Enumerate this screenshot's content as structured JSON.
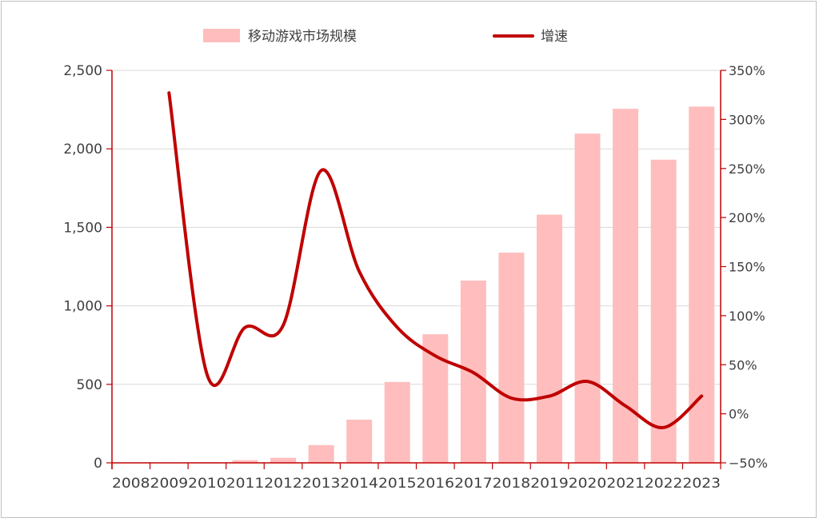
{
  "chart_data": {
    "type": "bar",
    "categories": [
      "2008",
      "2009",
      "2010",
      "2011",
      "2012",
      "2013",
      "2014",
      "2015",
      "2016",
      "2017",
      "2018",
      "2019",
      "2020",
      "2021",
      "2022",
      "2023"
    ],
    "series": [
      {
        "name": "移动游戏市场规模",
        "type": "bar",
        "axis": "left",
        "color": "#ffbdbd",
        "values": [
          1,
          2,
          4,
          17,
          32,
          113,
          275,
          515,
          819,
          1161,
          1339,
          1581,
          2097,
          2255,
          1931,
          2269
        ]
      },
      {
        "name": "增速",
        "type": "line",
        "axis": "right",
        "color": "#c00000",
        "values": [
          null,
          3.27,
          0.4,
          0.88,
          0.9,
          2.48,
          1.45,
          0.88,
          0.59,
          0.42,
          0.16,
          0.18,
          0.33,
          0.08,
          -0.14,
          0.18
        ]
      }
    ],
    "y_left": {
      "ylim": [
        0,
        2500
      ],
      "ticks": [
        0,
        500,
        1000,
        1500,
        2000,
        2500
      ],
      "tick_labels": [
        "0",
        "500",
        "1,000",
        "1,500",
        "2,000",
        "2,500"
      ]
    },
    "y_right": {
      "ylim": [
        -0.5,
        3.5
      ],
      "ticks": [
        -0.5,
        0,
        0.5,
        1,
        1.5,
        2,
        2.5,
        3,
        3.5
      ],
      "tick_labels": [
        "−50%",
        "0%",
        "50%",
        "100%",
        "150%",
        "200%",
        "250%",
        "300%",
        "350%"
      ]
    },
    "grid": "horizontal",
    "legend_position": "top"
  }
}
